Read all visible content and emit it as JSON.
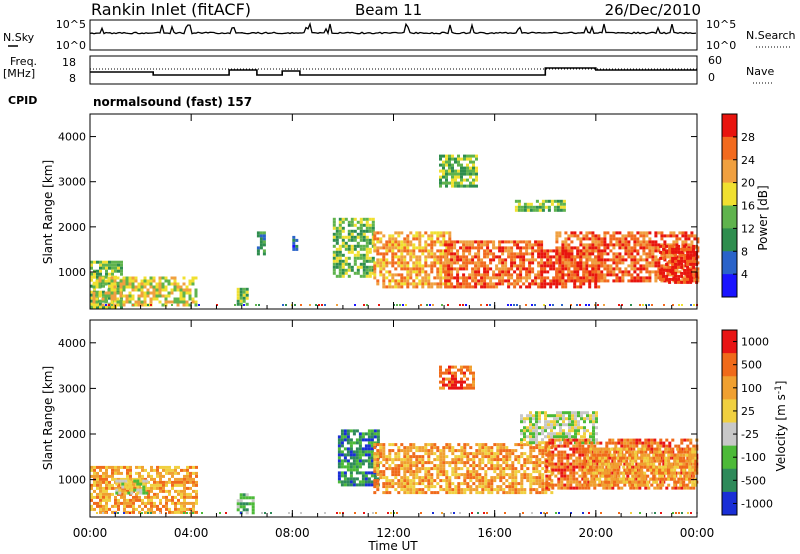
{
  "header": {
    "station": "Rankin Inlet (fitACF)",
    "beam": "Beam 11",
    "date": "26/Dec/2010"
  },
  "noise_panel": {
    "left_label": "N.Sky",
    "left_ticks": [
      "10^5",
      "10^0"
    ],
    "right_label": "N.Search",
    "right_ticks": [
      "10^5",
      "10^0"
    ]
  },
  "freq_panel": {
    "left_label_1": "Freq.",
    "left_label_2": "[MHz]",
    "left_ticks": [
      "18",
      "8"
    ],
    "right_label": "Nave",
    "right_ticks": [
      "60",
      "0"
    ]
  },
  "cpid": {
    "label": "CPID",
    "value": "normalsound (fast) 157"
  },
  "chart_data": [
    {
      "type": "heatmap",
      "name": "power",
      "title": "Power",
      "xlabel": "Time UT",
      "ylabel": "Slant Range [km]",
      "x_ticks": [
        "00:00",
        "04:00",
        "08:00",
        "12:00",
        "16:00",
        "20:00",
        "00:00"
      ],
      "y_ticks": [
        1000,
        2000,
        3000,
        4000
      ],
      "ylim": [
        180,
        4500
      ],
      "colorbar_label": "Power [dB]",
      "colorbar_ticks": [
        4,
        8,
        12,
        16,
        20,
        24,
        28
      ],
      "colorbar_colors": [
        "#1a14ff",
        "#2a63c9",
        "#2e8d4e",
        "#5fb34d",
        "#f0e030",
        "#f0a040",
        "#f26a1e",
        "#e8140e"
      ],
      "regions": [
        {
          "t0": 0.0,
          "t1": 1.2,
          "r0": 250,
          "r1": 1250,
          "level": 3
        },
        {
          "t0": 0.1,
          "t1": 4.2,
          "r0": 250,
          "r1": 900,
          "level": 4
        },
        {
          "t0": 5.8,
          "t1": 6.2,
          "r0": 300,
          "r1": 650,
          "level": 3
        },
        {
          "t0": 6.6,
          "t1": 6.9,
          "r0": 1400,
          "r1": 1900,
          "level": 2
        },
        {
          "t0": 8.0,
          "t1": 8.2,
          "r0": 1500,
          "r1": 1800,
          "level": 1
        },
        {
          "t0": 9.6,
          "t1": 11.2,
          "r0": 900,
          "r1": 2200,
          "level": 3
        },
        {
          "t0": 11.2,
          "t1": 14.2,
          "r0": 700,
          "r1": 1900,
          "level": 5
        },
        {
          "t0": 13.8,
          "t1": 15.3,
          "r0": 2900,
          "r1": 3600,
          "level": 3
        },
        {
          "t0": 14.0,
          "t1": 17.8,
          "r0": 700,
          "r1": 1700,
          "level": 6
        },
        {
          "t0": 16.8,
          "t1": 18.8,
          "r0": 2400,
          "r1": 2600,
          "level": 3
        },
        {
          "t0": 17.8,
          "t1": 20.2,
          "r0": 700,
          "r1": 1500,
          "level": 7
        },
        {
          "t0": 18.4,
          "t1": 24.0,
          "r0": 800,
          "r1": 1900,
          "level": 6
        },
        {
          "t0": 22.5,
          "t1": 24.0,
          "r0": 800,
          "r1": 1600,
          "level": 7
        }
      ]
    },
    {
      "type": "heatmap",
      "name": "velocity",
      "title": "Velocity",
      "xlabel": "Time UT",
      "ylabel": "Slant Range [km]",
      "x_ticks": [
        "00:00",
        "04:00",
        "08:00",
        "12:00",
        "16:00",
        "20:00",
        "00:00"
      ],
      "y_ticks": [
        1000,
        2000,
        3000,
        4000
      ],
      "ylim": [
        180,
        4500
      ],
      "colorbar_label": "Velocity [m s^-1]",
      "colorbar_ticks": [
        "1000",
        "500",
        "100",
        "25",
        "-25",
        "-100",
        "-500",
        "-1000"
      ],
      "colorbar_colors": [
        "#1a2fd6",
        "#2e8a5a",
        "#4cba38",
        "#c8c8c8",
        "#f0d040",
        "#f0a030",
        "#f06a1a",
        "#e81414"
      ],
      "regions": [
        {
          "t0": 0.0,
          "t1": 4.2,
          "r0": 250,
          "r1": 1300,
          "level": 5
        },
        {
          "t0": 1.0,
          "t1": 2.2,
          "r0": 700,
          "r1": 1000,
          "level": 3
        },
        {
          "t0": 5.8,
          "t1": 6.4,
          "r0": 300,
          "r1": 700,
          "level": 2
        },
        {
          "t0": 9.8,
          "t1": 11.4,
          "r0": 900,
          "r1": 2100,
          "level": 1
        },
        {
          "t0": 11.2,
          "t1": 18.2,
          "r0": 700,
          "r1": 1800,
          "level": 5
        },
        {
          "t0": 13.8,
          "t1": 15.2,
          "r0": 3000,
          "r1": 3500,
          "level": 6
        },
        {
          "t0": 17.0,
          "t1": 20.0,
          "r0": 1800,
          "r1": 2500,
          "level": 3
        },
        {
          "t0": 18.0,
          "t1": 24.0,
          "r0": 800,
          "r1": 1900,
          "level": 6
        },
        {
          "t0": 19.5,
          "t1": 24.0,
          "r0": 900,
          "r1": 1700,
          "level": 5
        }
      ]
    }
  ]
}
